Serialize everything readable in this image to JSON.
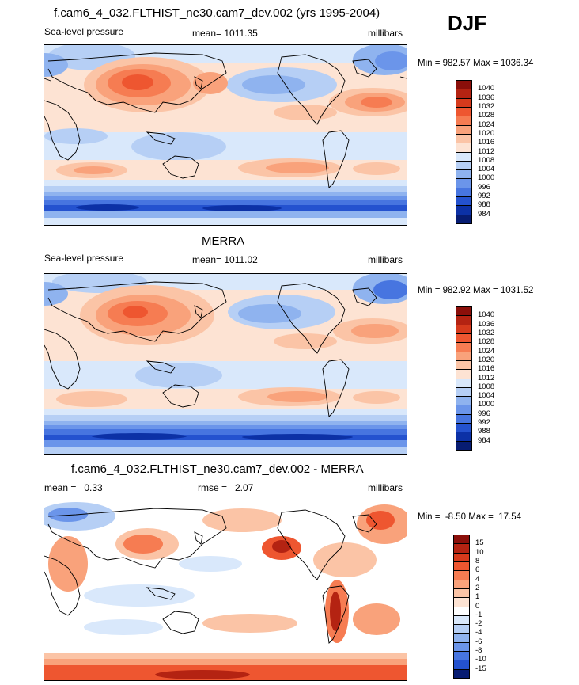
{
  "header": {
    "season": "DJF"
  },
  "panels": [
    {
      "id": "model",
      "title": "f.cam6_4_032.FLTHIST_ne30.cam7_dev.002 (yrs 1995-2004)",
      "left_label": "Sea-level pressure",
      "center_label": "mean= 1011.35",
      "right_label": "millibars",
      "minmax": "Min = 982.57 Max = 1036.34",
      "colorbar": {
        "labels": [
          "1040",
          "1036",
          "1032",
          "1028",
          "1024",
          "1020",
          "1016",
          "1012",
          "1008",
          "1004",
          "1000",
          "996",
          "992",
          "988",
          "984"
        ],
        "colors": [
          "#8b0f0a",
          "#b42312",
          "#d63a1c",
          "#ee5630",
          "#f67c52",
          "#f9a27b",
          "#fbc4a6",
          "#fde3d3",
          "#d9e8fb",
          "#b6cff5",
          "#8fb3ef",
          "#6b95ea",
          "#4775e0",
          "#2452cf",
          "#0c31a6",
          "#071c72"
        ]
      }
    },
    {
      "id": "obs",
      "title": "MERRA",
      "left_label": "Sea-level pressure",
      "center_label": "mean= 1011.02",
      "right_label": "millibars",
      "minmax": "Min = 982.92 Max = 1031.52",
      "colorbar": {
        "labels": [
          "1040",
          "1036",
          "1032",
          "1028",
          "1024",
          "1020",
          "1016",
          "1012",
          "1008",
          "1004",
          "1000",
          "996",
          "992",
          "988",
          "984"
        ],
        "colors": [
          "#8b0f0a",
          "#b42312",
          "#d63a1c",
          "#ee5630",
          "#f67c52",
          "#f9a27b",
          "#fbc4a6",
          "#fde3d3",
          "#d9e8fb",
          "#b6cff5",
          "#8fb3ef",
          "#6b95ea",
          "#4775e0",
          "#2452cf",
          "#0c31a6",
          "#071c72"
        ]
      }
    },
    {
      "id": "diff",
      "title": "f.cam6_4_032.FLTHIST_ne30.cam7_dev.002 - MERRA",
      "left_label": "mean =   0.33",
      "center_label": "rmse =   2.07",
      "right_label": "millibars",
      "minmax": "Min =  -8.50 Max =  17.54",
      "colorbar": {
        "labels": [
          "15",
          "10",
          "8",
          "6",
          "4",
          "2",
          "1",
          "0",
          "-1",
          "-2",
          "-4",
          "-6",
          "-8",
          "-10",
          "-15"
        ],
        "colors": [
          "#8b0f0a",
          "#b42312",
          "#d63a1c",
          "#ee5630",
          "#f67c52",
          "#f9a27b",
          "#fbc4a6",
          "#fde3d3",
          "#ffffff",
          "#d9e8fb",
          "#b6cff5",
          "#8fb3ef",
          "#6b95ea",
          "#4775e0",
          "#2452cf",
          "#071c72"
        ]
      }
    }
  ]
}
